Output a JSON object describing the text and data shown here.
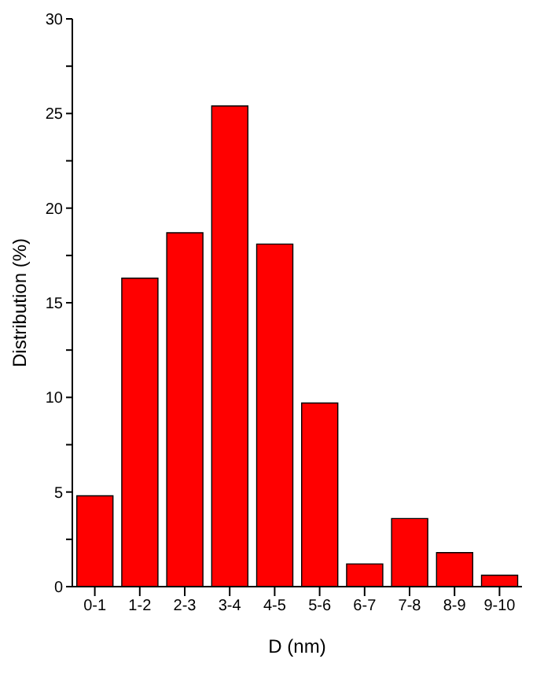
{
  "chart_data": {
    "type": "bar",
    "xlabel": "D (nm)",
    "ylabel": "Distribution (%)",
    "categories": [
      "0-1",
      "1-2",
      "2-3",
      "3-4",
      "4-5",
      "5-6",
      "6-7",
      "7-8",
      "8-9",
      "9-10"
    ],
    "values": [
      4.8,
      16.3,
      18.7,
      25.4,
      18.1,
      9.7,
      1.2,
      3.6,
      1.8,
      0.6
    ],
    "color": "#ff0000",
    "ylim": [
      0,
      30
    ],
    "yticks": [
      0,
      {
        "value": 2.5,
        "label": null
      },
      5,
      {
        "value": 7.5,
        "label": null
      },
      10,
      {
        "value": 12.5,
        "label": null
      },
      15,
      {
        "value": 17.5,
        "label": null
      },
      20,
      {
        "value": 22.5,
        "label": null
      },
      25,
      {
        "value": 27.5,
        "label": null
      },
      30
    ],
    "grid": false,
    "legend": false
  }
}
